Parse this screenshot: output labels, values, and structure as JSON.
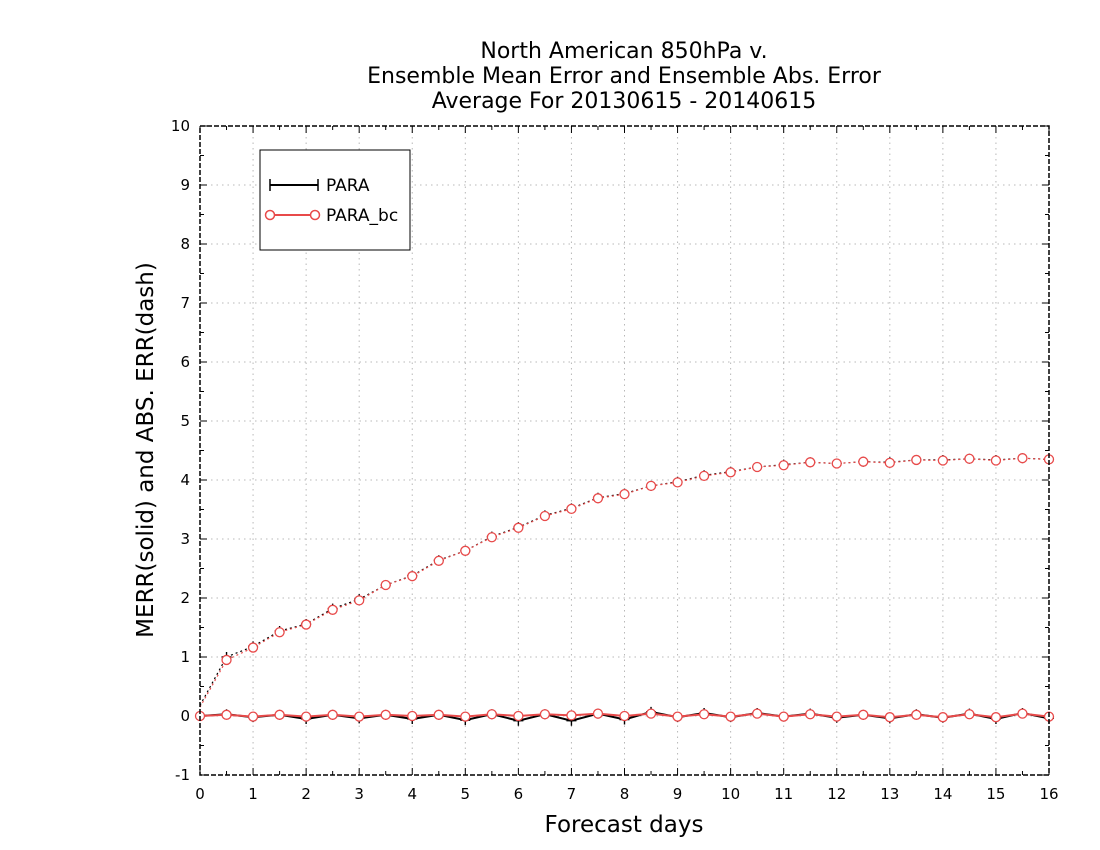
{
  "chart_data": {
    "type": "line",
    "title": [
      "North American 850hPa v.",
      "Ensemble Mean Error and Ensemble Abs. Error",
      "Average For 20130615 - 20140615"
    ],
    "xlabel": "Forecast days",
    "ylabel": "MERR(solid) and ABS. ERR(dash)",
    "xlim": [
      0,
      16
    ],
    "ylim": [
      -1,
      10
    ],
    "xticks": [
      "0",
      "1",
      "2",
      "3",
      "4",
      "5",
      "6",
      "7",
      "8",
      "9",
      "10",
      "11",
      "12",
      "13",
      "14",
      "15",
      "16"
    ],
    "yticks": [
      "-1",
      "0",
      "1",
      "2",
      "3",
      "4",
      "5",
      "6",
      "7",
      "8",
      "9",
      "10"
    ],
    "grid": true,
    "legend_position": "top-left",
    "x": [
      0,
      0.5,
      1,
      1.5,
      2,
      2.5,
      3,
      3.5,
      4,
      4.5,
      5,
      5.5,
      6,
      6.5,
      7,
      7.5,
      8,
      8.5,
      9,
      9.5,
      10,
      10.5,
      11,
      11.5,
      12,
      12.5,
      13,
      13.5,
      14,
      14.5,
      15,
      15.5,
      16
    ],
    "series": [
      {
        "name": "PARA",
        "style": "solid",
        "marker": "plus",
        "color": "#000000",
        "values": [
          0.0,
          0.03,
          -0.02,
          0.02,
          -0.05,
          0.02,
          -0.04,
          0.02,
          -0.05,
          0.02,
          -0.07,
          0.03,
          -0.08,
          0.03,
          -0.08,
          0.04,
          -0.06,
          0.07,
          -0.02,
          0.05,
          -0.02,
          0.05,
          -0.01,
          0.04,
          -0.03,
          0.02,
          -0.04,
          0.03,
          -0.03,
          0.04,
          -0.05,
          0.05,
          -0.04
        ]
      },
      {
        "name": "PARA_bc",
        "style": "solid",
        "marker": "circle",
        "color": "#e84a4a",
        "values": [
          0.0,
          0.02,
          -0.01,
          0.02,
          -0.01,
          0.02,
          -0.01,
          0.02,
          0.0,
          0.02,
          -0.01,
          0.03,
          0.0,
          0.03,
          0.01,
          0.04,
          0.0,
          0.04,
          -0.01,
          0.03,
          -0.01,
          0.04,
          -0.01,
          0.03,
          -0.01,
          0.02,
          -0.02,
          0.02,
          -0.02,
          0.03,
          -0.02,
          0.04,
          -0.01
        ]
      },
      {
        "name": "PARA",
        "style": "dash",
        "marker": "plus",
        "color": "#000000",
        "legend": false,
        "values": [
          0.18,
          1.0,
          1.18,
          1.44,
          1.56,
          1.82,
          1.98,
          2.22,
          2.38,
          2.64,
          2.8,
          3.04,
          3.2,
          3.4,
          3.52,
          3.7,
          3.77,
          3.9,
          3.97,
          4.08,
          4.14,
          4.22,
          4.26,
          4.3,
          4.28,
          4.31,
          4.3,
          4.34,
          4.34,
          4.36,
          4.34,
          4.37,
          4.35
        ]
      },
      {
        "name": "PARA_bc",
        "style": "dash",
        "marker": "circle",
        "color": "#e84a4a",
        "legend": false,
        "values": [
          0.15,
          0.95,
          1.16,
          1.42,
          1.55,
          1.8,
          1.96,
          2.22,
          2.37,
          2.63,
          2.8,
          3.03,
          3.19,
          3.39,
          3.51,
          3.69,
          3.76,
          3.9,
          3.96,
          4.07,
          4.13,
          4.22,
          4.25,
          4.3,
          4.28,
          4.31,
          4.29,
          4.34,
          4.33,
          4.36,
          4.33,
          4.37,
          4.35
        ]
      }
    ]
  }
}
